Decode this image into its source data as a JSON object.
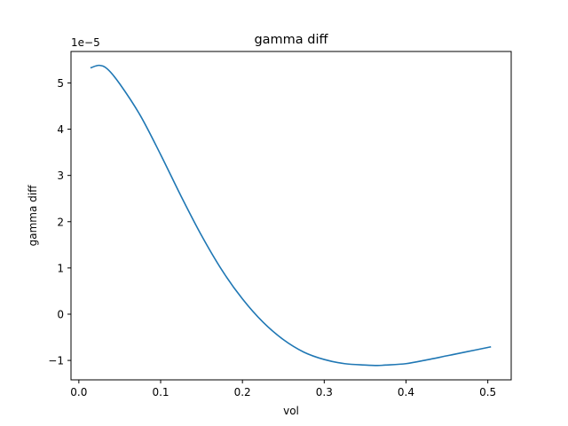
{
  "chart_data": {
    "type": "line",
    "title": "gamma diff",
    "xlabel": "vol",
    "ylabel": "gamma diff",
    "y_offset_label": "1e−5",
    "y_scale_factor": 1e-05,
    "xlim": [
      -0.0096,
      0.5286
    ],
    "ylim": [
      -1.42,
      5.68
    ],
    "xticks": [
      0.0,
      0.1,
      0.2,
      0.3,
      0.4,
      0.5
    ],
    "xtick_labels": [
      "0.0",
      "0.1",
      "0.2",
      "0.3",
      "0.4",
      "0.5"
    ],
    "yticks": [
      -1,
      0,
      1,
      2,
      3,
      4,
      5
    ],
    "ytick_labels": [
      "−1",
      "0",
      "1",
      "2",
      "3",
      "4",
      "5"
    ],
    "grid": false,
    "series": [
      {
        "color": "#1f77b4",
        "x": [
          0.015,
          0.025,
          0.035,
          0.05,
          0.075,
          0.1,
          0.125,
          0.15,
          0.175,
          0.2,
          0.225,
          0.25,
          0.275,
          0.3,
          0.325,
          0.35,
          0.365,
          0.375,
          0.4,
          0.425,
          0.45,
          0.475,
          0.5,
          0.503
        ],
        "y": [
          5.33,
          5.38,
          5.3,
          4.98,
          4.3,
          3.45,
          2.55,
          1.7,
          0.95,
          0.33,
          -0.17,
          -0.55,
          -0.82,
          -0.98,
          -1.07,
          -1.1,
          -1.11,
          -1.1,
          -1.07,
          -0.99,
          -0.9,
          -0.81,
          -0.72,
          -0.71
        ]
      }
    ]
  }
}
